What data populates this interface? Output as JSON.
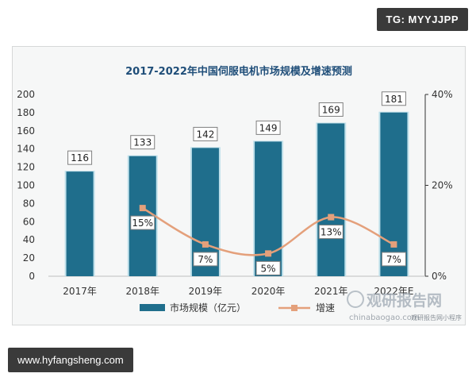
{
  "badges": {
    "tg": "TG: MYYJJPP",
    "url": "www.hyfangsheng.com"
  },
  "watermark": {
    "cn": "观研报告网",
    "domain": "chinabaogao.com",
    "sub": "观研报告网小程序"
  },
  "colors": {
    "bar": "#1f6e8c",
    "bar_edge": "#bfe0ea",
    "line": "#e4a07b",
    "title": "#1f4e79",
    "axis_text": "#333333",
    "label_border": "#7f7f7f"
  },
  "chart_data": {
    "type": "bar",
    "title": "2017-2022年中国伺服电机市场规模及增速预测",
    "categories": [
      "2017年",
      "2018年",
      "2019年",
      "2020年",
      "2021年",
      "2022年E"
    ],
    "series": [
      {
        "name": "市场规模（亿元）",
        "type": "bar",
        "axis": "left",
        "values": [
          116,
          133,
          142,
          149,
          169,
          181
        ],
        "labels": [
          "116",
          "133",
          "142",
          "149",
          "169",
          "181"
        ]
      },
      {
        "name": "增速",
        "type": "line",
        "axis": "right",
        "values": [
          null,
          15,
          7,
          5,
          13,
          7
        ],
        "labels": [
          "",
          "15%",
          "7%",
          "5%",
          "13%",
          "7%"
        ]
      }
    ],
    "ylim": [
      0,
      200
    ],
    "yticks": [
      0,
      20,
      40,
      60,
      80,
      100,
      120,
      140,
      160,
      180,
      200
    ],
    "y2lim": [
      0,
      40
    ],
    "y2ticks": [
      "0%",
      "20%",
      "40%"
    ],
    "y2tick_values": [
      0,
      20,
      40
    ],
    "legend": "bottom"
  }
}
